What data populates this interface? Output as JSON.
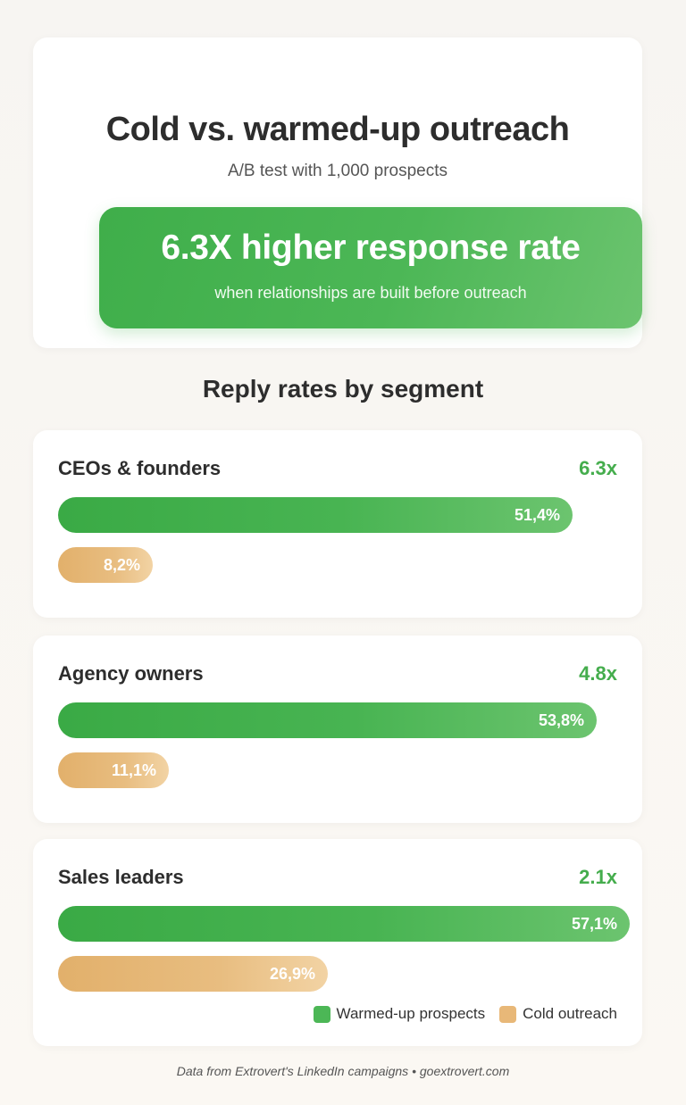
{
  "header": {
    "title": "Cold vs. warmed-up outreach",
    "subtitle": "A/B test with 1,000 prospects"
  },
  "highlight": {
    "headline": "6.3X higher response rate",
    "subline": "when relationships are built before outreach"
  },
  "section_title": "Reply rates by segment",
  "legend": {
    "warm": "Warmed-up prospects",
    "cold": "Cold outreach"
  },
  "footer": "Data from Extrovert's LinkedIn campaigns • goextrovert.com",
  "colors": {
    "warm": "#4cb756",
    "cold": "#e8b878",
    "accent_text": "#45ad4d"
  },
  "chart_data": {
    "type": "bar",
    "orientation": "horizontal",
    "title": "Reply rates by segment",
    "unit": "%",
    "xlim": [
      0,
      57.1
    ],
    "categories": [
      "CEOs & founders",
      "Agency owners",
      "Sales leaders"
    ],
    "multipliers": [
      "6.3x",
      "4.8x",
      "2.1x"
    ],
    "series": [
      {
        "name": "Warmed-up prospects",
        "values": [
          51.4,
          53.8,
          57.1
        ],
        "labels": [
          "51,4%",
          "53,8%",
          "57,1%"
        ]
      },
      {
        "name": "Cold outreach",
        "values": [
          8.2,
          11.1,
          26.9
        ],
        "labels": [
          "8,2%",
          "11,1%",
          "26,9%"
        ]
      }
    ],
    "legend_position": "bottom-right"
  }
}
